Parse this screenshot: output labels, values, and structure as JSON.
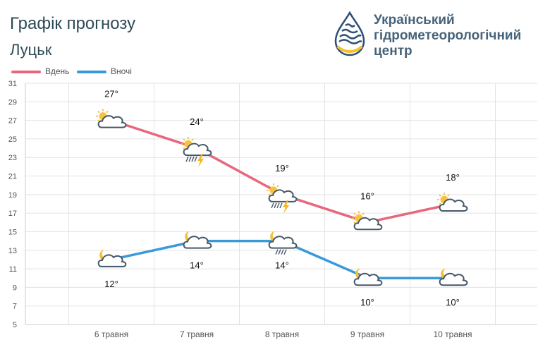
{
  "header": {
    "title": "Графік прогнозу",
    "city": "Луцьк",
    "org_lines": [
      "Український",
      "гідрометеорологічний",
      "центр"
    ]
  },
  "colors": {
    "day": "#e8677f",
    "night": "#3a9ad9",
    "grid": "#e3e3e3",
    "axis_text": "#555555",
    "logo_blue": "#2f4e78",
    "logo_yellow": "#f3c229"
  },
  "chart_data": {
    "type": "line",
    "categories": [
      "6 травня",
      "7 травня",
      "8 травня",
      "9 травня",
      "10 травня"
    ],
    "series": [
      {
        "name": "Вдень",
        "values": [
          27,
          24,
          19,
          16,
          18
        ],
        "labels": [
          "27°",
          "24°",
          "19°",
          "16°",
          "18°"
        ],
        "icons": [
          "sun-cloud-icon",
          "sun-thunderstorm-icon",
          "sun-thunderstorm-icon",
          "sun-cloud-icon",
          "sun-cloud-icon"
        ]
      },
      {
        "name": "Вночі",
        "values": [
          12,
          14,
          14,
          10,
          10
        ],
        "labels": [
          "12°",
          "14°",
          "14°",
          "10°",
          "10°"
        ],
        "icons": [
          "moon-cloud-icon",
          "moon-cloud-icon",
          "moon-cloud-rain-icon",
          "moon-cloud-icon",
          "moon-cloud-icon"
        ]
      }
    ],
    "ylim": [
      5,
      31
    ],
    "yticks": [
      5,
      7,
      9,
      11,
      13,
      15,
      17,
      19,
      21,
      23,
      25,
      27,
      29,
      31
    ],
    "grid": true,
    "legend": "top-left"
  }
}
